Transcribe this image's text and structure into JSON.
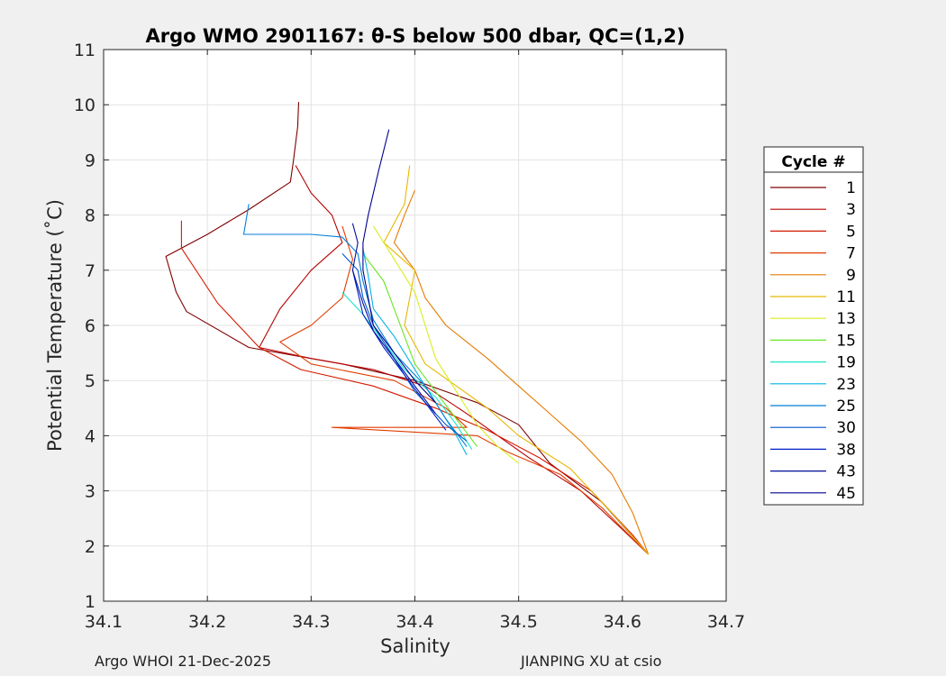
{
  "footer": {
    "left": "Argo WHOI 21-Dec-2025",
    "right": "JIANPING XU at csio"
  },
  "chart_data": {
    "type": "line",
    "title": "Argo WMO 2901167: θ-S below 500 dbar,  QC=(1,2)",
    "xlabel": "Salinity",
    "ylabel": "Potential Temperature (˚C)",
    "xlim": [
      34.1,
      34.7
    ],
    "ylim": [
      1,
      11
    ],
    "xticks": [
      "34.1",
      "34.2",
      "34.3",
      "34.4",
      "34.5",
      "34.6",
      "34.7"
    ],
    "yticks": [
      "1",
      "2",
      "3",
      "4",
      "5",
      "6",
      "7",
      "8",
      "9",
      "10",
      "11"
    ],
    "grid": true,
    "legend": {
      "title": "Cycle #",
      "position": "right",
      "entries": [
        {
          "label": "1",
          "color": "#7f0000"
        },
        {
          "label": "3",
          "color": "#b80000"
        },
        {
          "label": "5",
          "color": "#d41a00"
        },
        {
          "label": "7",
          "color": "#e03c00"
        },
        {
          "label": "9",
          "color": "#e67a00"
        },
        {
          "label": "11",
          "color": "#e6b800"
        },
        {
          "label": "13",
          "color": "#d9ee1a"
        },
        {
          "label": "15",
          "color": "#66e626"
        },
        {
          "label": "19",
          "color": "#1ae6c8"
        },
        {
          "label": "23",
          "color": "#00b3e6"
        },
        {
          "label": "25",
          "color": "#0080d9"
        },
        {
          "label": "30",
          "color": "#0055cc"
        },
        {
          "label": "38",
          "color": "#0020c8"
        },
        {
          "label": "43",
          "color": "#000f99"
        },
        {
          "label": "45",
          "color": "#00008f"
        }
      ]
    },
    "series": [
      {
        "name": "1",
        "color": "#7f0000",
        "points": [
          [
            34.288,
            10.05
          ],
          [
            34.287,
            9.6
          ],
          [
            34.283,
            9.0
          ],
          [
            34.28,
            8.6
          ],
          [
            34.24,
            8.1
          ],
          [
            34.2,
            7.65
          ],
          [
            34.16,
            7.25
          ],
          [
            34.17,
            6.6
          ],
          [
            34.18,
            6.25
          ],
          [
            34.24,
            5.6
          ],
          [
            34.33,
            5.3
          ],
          [
            34.4,
            5.0
          ],
          [
            34.46,
            4.6
          ],
          [
            34.5,
            4.2
          ],
          [
            34.53,
            3.5
          ],
          [
            34.58,
            2.8
          ],
          [
            34.625,
            1.85
          ]
        ]
      },
      {
        "name": "3",
        "color": "#b80000",
        "points": [
          [
            34.285,
            8.9
          ],
          [
            34.3,
            8.4
          ],
          [
            34.32,
            8.0
          ],
          [
            34.33,
            7.5
          ],
          [
            34.3,
            7.0
          ],
          [
            34.27,
            6.3
          ],
          [
            34.25,
            5.6
          ],
          [
            34.3,
            5.4
          ],
          [
            34.36,
            5.2
          ],
          [
            34.41,
            4.9
          ],
          [
            34.45,
            4.4
          ],
          [
            34.48,
            4.0
          ],
          [
            34.51,
            3.6
          ],
          [
            34.56,
            3.0
          ],
          [
            34.6,
            2.3
          ],
          [
            34.625,
            1.85
          ]
        ]
      },
      {
        "name": "5",
        "color": "#d41a00",
        "points": [
          [
            34.175,
            7.9
          ],
          [
            34.175,
            7.4
          ],
          [
            34.21,
            6.4
          ],
          [
            34.25,
            5.6
          ],
          [
            34.29,
            5.2
          ],
          [
            34.36,
            4.9
          ],
          [
            34.42,
            4.5
          ],
          [
            34.47,
            4.1
          ],
          [
            34.52,
            3.6
          ],
          [
            34.57,
            3.0
          ],
          [
            34.61,
            2.2
          ],
          [
            34.625,
            1.85
          ]
        ]
      },
      {
        "name": "7",
        "color": "#e03c00",
        "points": [
          [
            34.33,
            7.8
          ],
          [
            34.34,
            7.2
          ],
          [
            34.33,
            6.5
          ],
          [
            34.3,
            6.0
          ],
          [
            34.27,
            5.7
          ],
          [
            34.3,
            5.3
          ],
          [
            34.38,
            5.0
          ],
          [
            34.43,
            4.5
          ],
          [
            34.45,
            4.15
          ],
          [
            34.32,
            4.15
          ],
          [
            34.46,
            4.0
          ],
          [
            34.49,
            3.7
          ],
          [
            34.54,
            3.3
          ],
          [
            34.58,
            2.7
          ],
          [
            34.625,
            1.85
          ]
        ]
      },
      {
        "name": "9",
        "color": "#e67a00",
        "points": [
          [
            34.4,
            8.45
          ],
          [
            34.39,
            8.0
          ],
          [
            34.38,
            7.5
          ],
          [
            34.4,
            7.0
          ],
          [
            34.41,
            6.5
          ],
          [
            34.43,
            6.0
          ],
          [
            34.47,
            5.4
          ],
          [
            34.5,
            4.9
          ],
          [
            34.53,
            4.4
          ],
          [
            34.56,
            3.9
          ],
          [
            34.59,
            3.3
          ],
          [
            34.61,
            2.6
          ],
          [
            34.625,
            1.85
          ]
        ]
      },
      {
        "name": "11",
        "color": "#e6b800",
        "points": [
          [
            34.395,
            8.9
          ],
          [
            34.39,
            8.2
          ],
          [
            34.37,
            7.5
          ],
          [
            34.4,
            7.0
          ],
          [
            34.39,
            6.0
          ],
          [
            34.41,
            5.3
          ],
          [
            34.44,
            4.9
          ],
          [
            34.47,
            4.5
          ],
          [
            34.5,
            4.0
          ],
          [
            34.55,
            3.4
          ],
          [
            34.59,
            2.6
          ],
          [
            34.625,
            1.85
          ]
        ]
      },
      {
        "name": "13",
        "color": "#d9ee1a",
        "points": [
          [
            34.36,
            7.8
          ],
          [
            34.38,
            7.2
          ],
          [
            34.4,
            6.6
          ],
          [
            34.41,
            6.0
          ],
          [
            34.42,
            5.4
          ],
          [
            34.44,
            4.8
          ],
          [
            34.46,
            4.2
          ],
          [
            34.48,
            3.8
          ],
          [
            34.5,
            3.5
          ]
        ]
      },
      {
        "name": "15",
        "color": "#66e626",
        "points": [
          [
            34.35,
            7.3
          ],
          [
            34.37,
            6.8
          ],
          [
            34.38,
            6.3
          ],
          [
            34.39,
            5.8
          ],
          [
            34.4,
            5.3
          ],
          [
            34.42,
            4.8
          ],
          [
            34.44,
            4.3
          ],
          [
            34.46,
            3.8
          ]
        ]
      },
      {
        "name": "19",
        "color": "#1ae6c8",
        "points": [
          [
            34.33,
            6.6
          ],
          [
            34.35,
            6.2
          ],
          [
            34.37,
            5.7
          ],
          [
            34.39,
            5.2
          ],
          [
            34.42,
            4.7
          ],
          [
            34.44,
            4.2
          ],
          [
            34.455,
            3.75
          ]
        ]
      },
      {
        "name": "23",
        "color": "#00b3e6",
        "points": [
          [
            34.35,
            7.4
          ],
          [
            34.355,
            6.9
          ],
          [
            34.36,
            6.3
          ],
          [
            34.38,
            5.8
          ],
          [
            34.4,
            5.2
          ],
          [
            34.42,
            4.6
          ],
          [
            34.44,
            4.0
          ],
          [
            34.45,
            3.65
          ]
        ]
      },
      {
        "name": "25",
        "color": "#0080d9",
        "points": [
          [
            34.24,
            8.2
          ],
          [
            34.235,
            7.65
          ],
          [
            34.3,
            7.65
          ],
          [
            34.33,
            7.6
          ],
          [
            34.345,
            7.3
          ],
          [
            34.35,
            6.8
          ],
          [
            34.36,
            6.1
          ],
          [
            34.38,
            5.5
          ],
          [
            34.41,
            4.9
          ],
          [
            34.43,
            4.3
          ],
          [
            34.45,
            3.8
          ]
        ]
      },
      {
        "name": "30",
        "color": "#0055cc",
        "points": [
          [
            34.33,
            7.3
          ],
          [
            34.345,
            7.0
          ],
          [
            34.35,
            6.5
          ],
          [
            34.36,
            6.0
          ],
          [
            34.38,
            5.4
          ],
          [
            34.4,
            4.8
          ],
          [
            34.43,
            4.2
          ],
          [
            34.45,
            3.9
          ]
        ]
      },
      {
        "name": "38",
        "color": "#0020c8",
        "points": [
          [
            34.34,
            7.0
          ],
          [
            34.345,
            6.6
          ],
          [
            34.35,
            6.2
          ],
          [
            34.37,
            5.6
          ],
          [
            34.39,
            5.1
          ],
          [
            34.41,
            4.6
          ],
          [
            34.43,
            4.1
          ]
        ]
      },
      {
        "name": "43",
        "color": "#000f99",
        "points": [
          [
            34.34,
            7.85
          ],
          [
            34.345,
            7.5
          ],
          [
            34.34,
            7.0
          ],
          [
            34.35,
            6.4
          ],
          [
            34.36,
            5.9
          ],
          [
            34.38,
            5.4
          ],
          [
            34.4,
            4.9
          ],
          [
            34.42,
            4.4
          ]
        ]
      },
      {
        "name": "45",
        "color": "#00008f",
        "points": [
          [
            34.375,
            9.55
          ],
          [
            34.365,
            8.8
          ],
          [
            34.355,
            8.0
          ],
          [
            34.35,
            7.5
          ],
          [
            34.35,
            7.0
          ],
          [
            34.355,
            6.5
          ],
          [
            34.36,
            6.0
          ],
          [
            34.38,
            5.5
          ],
          [
            34.4,
            5.0
          ],
          [
            34.42,
            4.6
          ]
        ]
      }
    ]
  }
}
